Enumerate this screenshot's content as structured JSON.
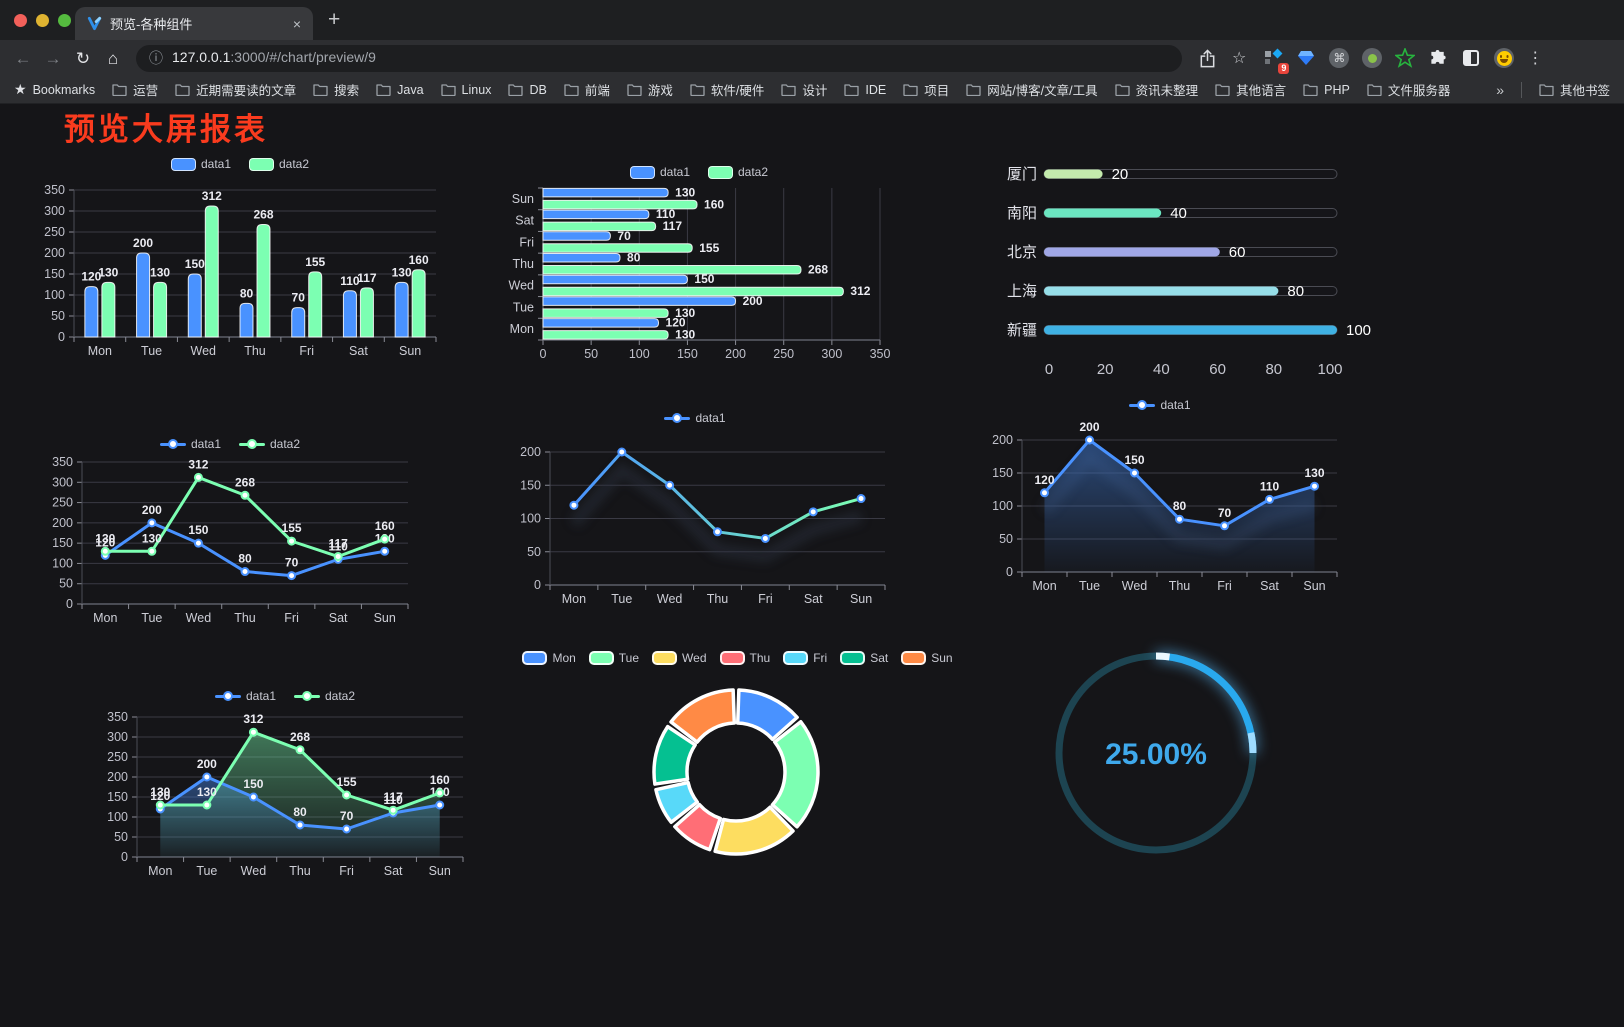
{
  "browser": {
    "traffic_lights": [
      "#f2605a",
      "#dfb331",
      "#55bb3f"
    ],
    "tab": {
      "title": "预览-各种组件"
    },
    "icons": {
      "close": "×",
      "plus": "+",
      "back": "←",
      "forward": "→",
      "reload": "↻",
      "home": "⌂",
      "info": "ⓘ",
      "star": "☆",
      "menu": "⋮",
      "bookmark_star": "★",
      "cmd": "⌘"
    },
    "url": {
      "host": "127.0.0.1",
      "rest": ":3000/#/chart/preview/9"
    },
    "extensions": {
      "badge": "9"
    },
    "bookmarks": {
      "label": "Bookmarks",
      "folders": [
        "运营",
        "近期需要读的文章",
        "搜索",
        "Java",
        "Linux",
        "DB",
        "前端",
        "游戏",
        "软件/硬件",
        "设计",
        "IDE",
        "项目",
        "网站/博客/文章/工具",
        "资讯未整理",
        "其他语言",
        "PHP",
        "文件服务器"
      ],
      "overflow": "»",
      "other": "其他书签"
    }
  },
  "page": {
    "title": "预览大屏报表",
    "title_color": "#fa3b1e"
  },
  "chart_data": [
    {
      "id": "grouped-bar",
      "type": "bar",
      "categories": [
        "Mon",
        "Tue",
        "Wed",
        "Thu",
        "Fri",
        "Sat",
        "Sun"
      ],
      "series": [
        {
          "name": "data1",
          "color": "#4992ff",
          "values": [
            120,
            200,
            150,
            80,
            70,
            110,
            130
          ]
        },
        {
          "name": "data2",
          "color": "#7cffb2",
          "values": [
            130,
            130,
            312,
            268,
            155,
            117,
            160
          ]
        }
      ],
      "ylim": [
        0,
        350
      ],
      "ystep": 50,
      "legend_position": "top",
      "grid": true
    },
    {
      "id": "grouped-hbar",
      "type": "hbar",
      "categories": [
        "Mon",
        "Tue",
        "Wed",
        "Thu",
        "Fri",
        "Sat",
        "Sun"
      ],
      "display_order": "Sun-top",
      "series": [
        {
          "name": "data1",
          "color": "#4992ff",
          "values": [
            120,
            200,
            150,
            80,
            70,
            110,
            130
          ]
        },
        {
          "name": "data2",
          "color": "#7cffb2",
          "values": [
            130,
            130,
            312,
            268,
            155,
            117,
            160
          ]
        }
      ],
      "xlim": [
        0,
        350
      ],
      "xstep": 50,
      "legend_position": "top",
      "grid": true
    },
    {
      "id": "city-progress",
      "type": "progress-bars",
      "xlim": [
        0,
        100
      ],
      "xticks": [
        0,
        20,
        40,
        60,
        80,
        100
      ],
      "rows": [
        {
          "label": "厦门",
          "value": 20,
          "color": "#c4ebad"
        },
        {
          "label": "南阳",
          "value": 40,
          "color": "#6be6c1"
        },
        {
          "label": "北京",
          "value": 60,
          "color": "#a0a7e6"
        },
        {
          "label": "上海",
          "value": 80,
          "color": "#96dee8"
        },
        {
          "label": "新疆",
          "value": 100,
          "color": "#3fb1e3"
        }
      ]
    },
    {
      "id": "dual-line",
      "type": "line",
      "categories": [
        "Mon",
        "Tue",
        "Wed",
        "Thu",
        "Fri",
        "Sat",
        "Sun"
      ],
      "series": [
        {
          "name": "data1",
          "color": "#4992ff",
          "values": [
            120,
            200,
            150,
            80,
            70,
            110,
            130
          ],
          "point_labels": true
        },
        {
          "name": "data2",
          "color": "#7cffb2",
          "values": [
            130,
            130,
            312,
            268,
            155,
            117,
            160
          ],
          "point_labels": true
        }
      ],
      "ylim": [
        0,
        350
      ],
      "ystep": 50,
      "legend_position": "top",
      "grid": true
    },
    {
      "id": "gradient-line",
      "type": "line",
      "categories": [
        "Mon",
        "Tue",
        "Wed",
        "Thu",
        "Fri",
        "Sat",
        "Sun"
      ],
      "series": [
        {
          "name": "data1",
          "color": "#4992ff",
          "gradient": [
            "#4992ff",
            "#7cffb2"
          ],
          "values": [
            120,
            200,
            150,
            80,
            70,
            110,
            130
          ],
          "shadow": true,
          "point_labels": false
        }
      ],
      "ylim": [
        0,
        200
      ],
      "ystep": 50,
      "legend_position": "top",
      "grid": true
    },
    {
      "id": "area-line",
      "type": "line",
      "categories": [
        "Mon",
        "Tue",
        "Wed",
        "Thu",
        "Fri",
        "Sat",
        "Sun"
      ],
      "series": [
        {
          "name": "data1",
          "color": "#4992ff",
          "values": [
            120,
            200,
            150,
            80,
            70,
            110,
            130
          ],
          "area": true,
          "shadow": true,
          "point_labels": true
        }
      ],
      "ylim": [
        0,
        200
      ],
      "ystep": 50,
      "legend_position": "top",
      "grid": true
    },
    {
      "id": "dual-area-line",
      "type": "line",
      "categories": [
        "Mon",
        "Tue",
        "Wed",
        "Thu",
        "Fri",
        "Sat",
        "Sun"
      ],
      "series": [
        {
          "name": "data1",
          "color": "#4992ff",
          "values": [
            120,
            200,
            150,
            80,
            70,
            110,
            130
          ],
          "area": true,
          "point_labels": true
        },
        {
          "name": "data2",
          "color": "#7cffb2",
          "values": [
            130,
            130,
            312,
            268,
            155,
            117,
            160
          ],
          "area": true,
          "point_labels": true
        }
      ],
      "ylim": [
        0,
        350
      ],
      "ystep": 50,
      "legend_position": "top",
      "grid": true
    },
    {
      "id": "week-donut",
      "type": "pie",
      "inner_radius_ratio": 0.6,
      "legend_position": "top",
      "items": [
        {
          "label": "Mon",
          "value": 120,
          "color": "#4992ff"
        },
        {
          "label": "Tue",
          "value": 200,
          "color": "#7cffb2"
        },
        {
          "label": "Wed",
          "value": 150,
          "color": "#fddd60"
        },
        {
          "label": "Thu",
          "value": 80,
          "color": "#ff6e76"
        },
        {
          "label": "Fri",
          "value": 70,
          "color": "#58d9f9"
        },
        {
          "label": "Sat",
          "value": 110,
          "color": "#05c091"
        },
        {
          "label": "Sun",
          "value": 130,
          "color": "#ff8a45"
        }
      ]
    },
    {
      "id": "ring-progress",
      "type": "gauge",
      "value": 25,
      "text": "25.00%",
      "color": "#29a9ee",
      "track_color": "#1d4451"
    }
  ]
}
